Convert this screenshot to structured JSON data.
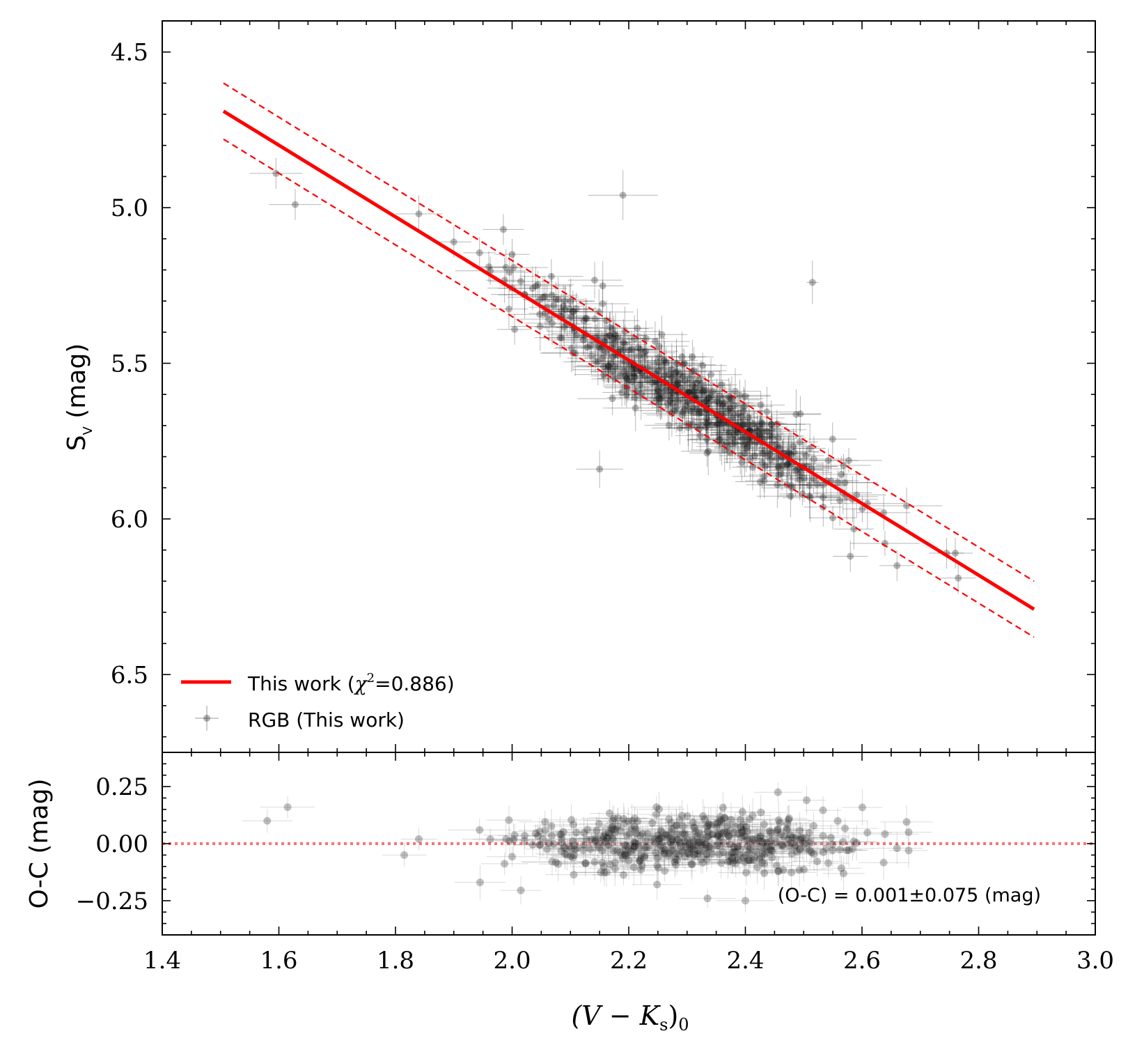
{
  "chart_data": [
    {
      "type": "scatter",
      "panel": "main",
      "xlabel": "(V − Ks)0",
      "ylabel": "Sv (mag)",
      "xlim": [
        1.4,
        3.0
      ],
      "ylim": [
        6.75,
        4.4
      ],
      "y_inverted": true,
      "x_ticks": [
        "1.4",
        "1.6",
        "1.8",
        "2.0",
        "2.2",
        "2.4",
        "2.6",
        "2.8",
        "3.0"
      ],
      "y_ticks": [
        "4.5",
        "5.0",
        "5.5",
        "6.0",
        "6.5"
      ],
      "fit": {
        "name": "This work",
        "chi2_label": "χ²=0.886",
        "x": [
          1.505,
          2.895
        ],
        "y": [
          4.69,
          6.29
        ],
        "color": "#ff0000"
      },
      "fit_band": {
        "offset": 0.09,
        "color": "#ff0000",
        "style": "dashed"
      },
      "legend": {
        "position": "lower-left",
        "entries": [
          "This work",
          "RGB (This work)"
        ]
      },
      "outliers": [
        {
          "x": 1.595,
          "y": 4.89,
          "xerr": 0.045,
          "yerr": 0.05
        },
        {
          "x": 1.628,
          "y": 4.99,
          "xerr": 0.045,
          "yerr": 0.05
        },
        {
          "x": 2.19,
          "y": 4.96,
          "xerr": 0.06,
          "yerr": 0.08
        },
        {
          "x": 2.515,
          "y": 5.24,
          "xerr": 0.01,
          "yerr": 0.07
        },
        {
          "x": 2.15,
          "y": 5.84,
          "xerr": 0.04,
          "yerr": 0.06
        },
        {
          "x": 1.84,
          "y": 5.02,
          "xerr": 0.04,
          "yerr": 0.06
        },
        {
          "x": 1.985,
          "y": 5.07,
          "xerr": 0.035,
          "yerr": 0.05
        },
        {
          "x": 2.76,
          "y": 6.11,
          "xerr": 0.03,
          "yerr": 0.05
        },
        {
          "x": 2.765,
          "y": 6.19,
          "xerr": 0.03,
          "yerr": 0.05
        },
        {
          "x": 2.745,
          "y": 6.11,
          "xerr": 0.03,
          "yerr": 0.05
        },
        {
          "x": 2.66,
          "y": 6.15,
          "xerr": 0.03,
          "yerr": 0.05
        },
        {
          "x": 2.58,
          "y": 6.12,
          "xerr": 0.03,
          "yerr": 0.05
        },
        {
          "x": 1.9,
          "y": 5.11,
          "xerr": 0.03,
          "yerr": 0.05
        },
        {
          "x": 1.96,
          "y": 5.19,
          "xerr": 0.03,
          "yerr": 0.05
        },
        {
          "x": 2.0,
          "y": 5.15,
          "xerr": 0.03,
          "yerr": 0.05
        }
      ],
      "cloud": {
        "n": 480,
        "x_range": [
          1.93,
          2.7
        ],
        "scatter_sd": 0.075,
        "xerr": 0.045,
        "yerr": 0.06
      }
    },
    {
      "type": "scatter",
      "panel": "residual",
      "xlabel": "(V − Ks)0",
      "ylabel": "O-C (mag)",
      "xlim": [
        1.4,
        3.0
      ],
      "ylim": [
        -0.4,
        0.4
      ],
      "x_ticks": [
        "1.4",
        "1.6",
        "1.8",
        "2.0",
        "2.2",
        "2.4",
        "2.6",
        "2.8",
        "3.0"
      ],
      "y_ticks": [
        "0.25",
        "0.00",
        "−0.25"
      ],
      "zero_line": {
        "y": 0.0,
        "color": "#ff7070",
        "style": "dotted"
      },
      "annotation": "(O-C) = 0.001±0.075 (mag)",
      "mean": 0.001,
      "sd": 0.075,
      "outliers": [
        {
          "x": 1.58,
          "y": 0.1
        },
        {
          "x": 1.615,
          "y": 0.16
        },
        {
          "x": 1.815,
          "y": -0.05
        },
        {
          "x": 1.84,
          "y": 0.02
        },
        {
          "x": 1.945,
          "y": -0.17
        },
        {
          "x": 2.68,
          "y": 0.05
        },
        {
          "x": 2.68,
          "y": -0.03
        },
        {
          "x": 2.66,
          "y": -0.02
        },
        {
          "x": 2.505,
          "y": 0.19
        },
        {
          "x": 2.4,
          "y": -0.25
        },
        {
          "x": 2.335,
          "y": -0.24
        }
      ],
      "cloud": {
        "n": 480,
        "x_range": [
          1.93,
          2.7
        ],
        "sd": 0.075
      }
    }
  ],
  "legend": {
    "fit_label_prefix": "This work (",
    "fit_label_chi": "χ",
    "fit_label_sup": "2",
    "fit_label_suffix": "=0.886)",
    "points_label": "RGB (This work)"
  },
  "axes": {
    "x_label_main": "(V − K",
    "x_label_sub_s": "s",
    "x_label_close": ")",
    "x_label_sub_0": "0",
    "y_label_top_S": "S",
    "y_label_top_sub": "V",
    "y_label_top_unit": " (mag)",
    "y_label_bottom": "O-C (mag)"
  },
  "colors": {
    "fit": "#ff0000",
    "zero_line": "#ff7070",
    "points": "#000000"
  }
}
